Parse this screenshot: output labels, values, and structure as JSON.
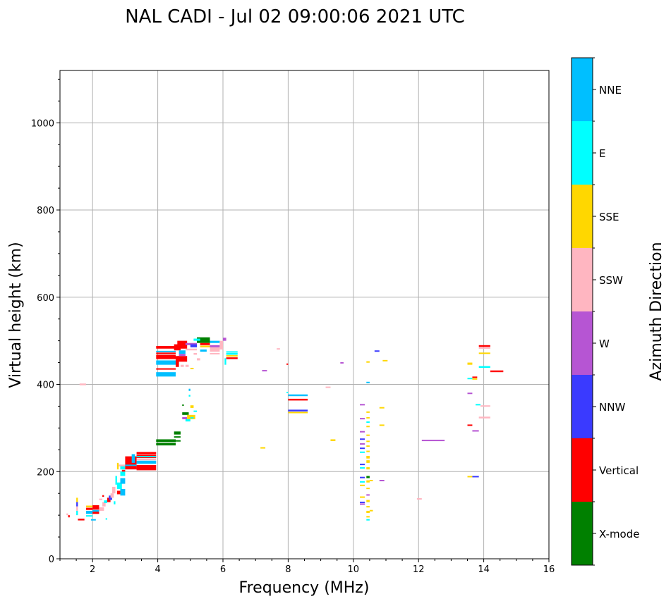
{
  "chart_data": {
    "type": "scatter",
    "title": "NAL CADI - Jul 02 09:00:06 2021 UTC",
    "xlabel": "Frequency (MHz)",
    "ylabel": "Virtual height (km)",
    "xlim": [
      1,
      16
    ],
    "ylim": [
      0,
      1120
    ],
    "xticks": [
      2,
      4,
      6,
      8,
      10,
      12,
      14,
      16
    ],
    "yticks": [
      0,
      200,
      400,
      600,
      800,
      1000
    ],
    "grid": true,
    "colorbar": {
      "label": "Azimuth Direction",
      "categories": [
        {
          "name": "X-mode",
          "color": "#008000"
        },
        {
          "name": "Vertical",
          "color": "#ff0000"
        },
        {
          "name": "NNW",
          "color": "#3a3aff"
        },
        {
          "name": "W",
          "color": "#b655d3"
        },
        {
          "name": "SSW",
          "color": "#ffb6c1"
        },
        {
          "name": "SSE",
          "color": "#ffd700"
        },
        {
          "name": "E",
          "color": "#00ffff"
        },
        {
          "name": "NNE",
          "color": "#00bfff"
        }
      ]
    },
    "segments_format": "[freq_start_MHz, freq_end_MHz, height_low_km, height_high_km, category_index]",
    "segments": [
      [
        1.2,
        1.25,
        100,
        104,
        4
      ],
      [
        1.25,
        1.3,
        95,
        100,
        1
      ],
      [
        1.5,
        1.55,
        130,
        140,
        5
      ],
      [
        1.5,
        1.55,
        120,
        130,
        2
      ],
      [
        1.5,
        1.55,
        110,
        120,
        4
      ],
      [
        1.5,
        1.55,
        100,
        110,
        6
      ],
      [
        1.55,
        1.75,
        88,
        92,
        1
      ],
      [
        1.8,
        2.0,
        118,
        122,
        5
      ],
      [
        1.8,
        2.0,
        112,
        117,
        1
      ],
      [
        1.8,
        2.0,
        103,
        110,
        7
      ],
      [
        1.8,
        2.0,
        97,
        100,
        6
      ],
      [
        2.0,
        2.2,
        113,
        123,
        1
      ],
      [
        2.0,
        2.2,
        103,
        112,
        1
      ],
      [
        2.0,
        2.2,
        108,
        112,
        7
      ],
      [
        2.2,
        2.35,
        110,
        118,
        4
      ],
      [
        2.3,
        2.4,
        120,
        130,
        4
      ],
      [
        2.35,
        2.45,
        128,
        134,
        6
      ],
      [
        2.45,
        2.55,
        130,
        140,
        1
      ],
      [
        2.5,
        2.6,
        135,
        145,
        2
      ],
      [
        2.55,
        2.65,
        140,
        150,
        4
      ],
      [
        2.6,
        2.7,
        150,
        165,
        4
      ],
      [
        2.65,
        2.7,
        125,
        132,
        6
      ],
      [
        2.2,
        2.3,
        135,
        138,
        4
      ],
      [
        2.3,
        2.35,
        142,
        146,
        1
      ],
      [
        1.95,
        2.1,
        88,
        91,
        7
      ],
      [
        2.4,
        2.45,
        90,
        93,
        6
      ],
      [
        2.7,
        2.75,
        170,
        190,
        6
      ],
      [
        2.75,
        2.85,
        148,
        156,
        1
      ],
      [
        2.75,
        2.9,
        160,
        175,
        6
      ],
      [
        2.85,
        3.0,
        145,
        160,
        7
      ],
      [
        2.85,
        3.0,
        172,
        185,
        7
      ],
      [
        2.85,
        3.0,
        190,
        200,
        6
      ],
      [
        2.85,
        3.0,
        205,
        215,
        6
      ],
      [
        2.75,
        2.8,
        205,
        220,
        5
      ],
      [
        2.8,
        3.0,
        212,
        216,
        4
      ],
      [
        2.9,
        3.0,
        200,
        204,
        1
      ],
      [
        3.0,
        3.35,
        205,
        235,
        1
      ],
      [
        3.0,
        3.35,
        213,
        216,
        7
      ],
      [
        3.2,
        3.3,
        220,
        240,
        7
      ],
      [
        3.35,
        3.95,
        203,
        215,
        1
      ],
      [
        3.35,
        3.95,
        218,
        225,
        7
      ],
      [
        3.35,
        3.95,
        226,
        230,
        4
      ],
      [
        3.35,
        3.95,
        231,
        239,
        1
      ],
      [
        3.35,
        3.95,
        240,
        245,
        1
      ],
      [
        3.35,
        3.95,
        234,
        236,
        6
      ],
      [
        3.95,
        4.55,
        260,
        266,
        0
      ],
      [
        3.95,
        4.55,
        268,
        274,
        0
      ],
      [
        4.5,
        4.7,
        285,
        292,
        0
      ],
      [
        4.5,
        4.7,
        278,
        281,
        0
      ],
      [
        4.5,
        4.7,
        270,
        272,
        0
      ],
      [
        4.75,
        4.9,
        320,
        325,
        3
      ],
      [
        4.75,
        4.95,
        330,
        336,
        0
      ],
      [
        4.85,
        5.0,
        315,
        320,
        6
      ],
      [
        4.9,
        5.15,
        320,
        330,
        5
      ],
      [
        5.0,
        5.1,
        322,
        325,
        6
      ],
      [
        5.1,
        5.2,
        338,
        340,
        6
      ],
      [
        4.95,
        5.0,
        385,
        390,
        7
      ],
      [
        4.95,
        5.0,
        372,
        376,
        6
      ],
      [
        4.75,
        4.8,
        352,
        354,
        0
      ],
      [
        5.0,
        5.1,
        346,
        352,
        5
      ],
      [
        3.95,
        4.55,
        482,
        488,
        1
      ],
      [
        3.95,
        4.55,
        474,
        477,
        7
      ],
      [
        3.95,
        4.55,
        470,
        473,
        1
      ],
      [
        3.95,
        4.55,
        458,
        468,
        1
      ],
      [
        3.95,
        4.55,
        445,
        455,
        7
      ],
      [
        3.95,
        4.55,
        435,
        437,
        1
      ],
      [
        3.95,
        4.55,
        418,
        428,
        7
      ],
      [
        4.5,
        4.7,
        478,
        492,
        1
      ],
      [
        4.55,
        4.65,
        440,
        465,
        1
      ],
      [
        4.6,
        4.9,
        452,
        465,
        1
      ],
      [
        4.6,
        4.9,
        482,
        500,
        1
      ],
      [
        4.65,
        4.85,
        470,
        478,
        7
      ],
      [
        4.65,
        4.85,
        465,
        470,
        3
      ],
      [
        4.85,
        5.2,
        490,
        495,
        3
      ],
      [
        4.85,
        5.2,
        478,
        482,
        4
      ],
      [
        5.2,
        5.6,
        495,
        508,
        0
      ],
      [
        5.1,
        5.3,
        500,
        505,
        6
      ],
      [
        5.0,
        5.2,
        485,
        492,
        2
      ],
      [
        5.3,
        5.6,
        490,
        495,
        1
      ],
      [
        5.3,
        5.6,
        485,
        489,
        5
      ],
      [
        5.6,
        5.9,
        495,
        500,
        7
      ],
      [
        5.6,
        5.9,
        485,
        490,
        3
      ],
      [
        5.6,
        5.9,
        475,
        485,
        4
      ],
      [
        5.9,
        6.0,
        480,
        500,
        4
      ],
      [
        5.3,
        5.5,
        475,
        480,
        7
      ],
      [
        5.6,
        5.9,
        470,
        472,
        4
      ],
      [
        5.1,
        5.2,
        468,
        472,
        4
      ],
      [
        6.1,
        6.45,
        468,
        472,
        6
      ],
      [
        6.1,
        6.45,
        464,
        467,
        5
      ],
      [
        6.1,
        6.45,
        458,
        462,
        1
      ],
      [
        6.1,
        6.45,
        473,
        476,
        6
      ],
      [
        4.7,
        4.8,
        440,
        445,
        4
      ],
      [
        4.85,
        4.95,
        440,
        445,
        4
      ],
      [
        5.0,
        5.1,
        435,
        438,
        5
      ],
      [
        5.2,
        5.3,
        455,
        460,
        4
      ],
      [
        6.05,
        6.1,
        445,
        460,
        6
      ],
      [
        6.0,
        6.1,
        500,
        507,
        3
      ],
      [
        1.6,
        1.8,
        398,
        402,
        4
      ],
      [
        7.2,
        7.35,
        430,
        433,
        3
      ],
      [
        7.65,
        7.75,
        480,
        483,
        4
      ],
      [
        7.95,
        8.0,
        445,
        448,
        1
      ],
      [
        8.0,
        8.6,
        373,
        377,
        7
      ],
      [
        8.0,
        8.6,
        363,
        367,
        1
      ],
      [
        8.0,
        8.6,
        338,
        342,
        2
      ],
      [
        8.0,
        8.6,
        334,
        337,
        5
      ],
      [
        7.95,
        8.0,
        380,
        383,
        6
      ],
      [
        7.15,
        7.3,
        253,
        256,
        5
      ],
      [
        9.15,
        9.3,
        393,
        395,
        4
      ],
      [
        9.3,
        9.45,
        270,
        274,
        5
      ],
      [
        9.6,
        9.7,
        448,
        451,
        3
      ],
      [
        10.4,
        10.5,
        450,
        453,
        5
      ],
      [
        10.4,
        10.5,
        403,
        406,
        7
      ],
      [
        10.65,
        10.8,
        475,
        478,
        2
      ],
      [
        10.9,
        11.05,
        453,
        456,
        5
      ],
      [
        10.8,
        10.95,
        345,
        348,
        5
      ],
      [
        10.8,
        10.95,
        305,
        308,
        5
      ],
      [
        10.8,
        10.95,
        178,
        181,
        3
      ],
      [
        10.2,
        10.35,
        352,
        355,
        3
      ],
      [
        10.2,
        10.35,
        320,
        323,
        3
      ],
      [
        10.2,
        10.35,
        290,
        293,
        3
      ],
      [
        10.2,
        10.35,
        273,
        276,
        2
      ],
      [
        10.2,
        10.35,
        262,
        265,
        3
      ],
      [
        10.2,
        10.35,
        252,
        255,
        2
      ],
      [
        10.2,
        10.35,
        243,
        246,
        6
      ],
      [
        10.2,
        10.35,
        215,
        218,
        2
      ],
      [
        10.2,
        10.35,
        207,
        210,
        6
      ],
      [
        10.2,
        10.35,
        185,
        188,
        2
      ],
      [
        10.2,
        10.35,
        175,
        178,
        6
      ],
      [
        10.2,
        10.35,
        167,
        170,
        5
      ],
      [
        10.2,
        10.35,
        140,
        143,
        5
      ],
      [
        10.2,
        10.35,
        128,
        131,
        2
      ],
      [
        10.2,
        10.35,
        125,
        127,
        3
      ],
      [
        10.4,
        10.5,
        335,
        338,
        5
      ],
      [
        10.4,
        10.5,
        322,
        325,
        5
      ],
      [
        10.4,
        10.5,
        312,
        315,
        6
      ],
      [
        10.4,
        10.5,
        302,
        305,
        5
      ],
      [
        10.4,
        10.5,
        282,
        285,
        5
      ],
      [
        10.4,
        10.5,
        268,
        271,
        5
      ],
      [
        10.4,
        10.5,
        257,
        260,
        5
      ],
      [
        10.4,
        10.5,
        245,
        248,
        5
      ],
      [
        10.4,
        10.5,
        230,
        236,
        5
      ],
      [
        10.4,
        10.5,
        220,
        226,
        5
      ],
      [
        10.4,
        10.5,
        205,
        210,
        5
      ],
      [
        10.4,
        10.5,
        185,
        190,
        0
      ],
      [
        10.4,
        10.5,
        175,
        180,
        5
      ],
      [
        10.4,
        10.5,
        160,
        163,
        5
      ],
      [
        10.4,
        10.5,
        145,
        148,
        3
      ],
      [
        10.4,
        10.5,
        130,
        135,
        5
      ],
      [
        10.4,
        10.5,
        118,
        121,
        5
      ],
      [
        10.4,
        10.5,
        105,
        110,
        5
      ],
      [
        10.4,
        10.5,
        95,
        98,
        5
      ],
      [
        10.4,
        10.5,
        88,
        91,
        6
      ],
      [
        10.5,
        10.6,
        110,
        112,
        5
      ],
      [
        10.5,
        10.6,
        178,
        181,
        5
      ],
      [
        12.1,
        12.8,
        270,
        273,
        3
      ],
      [
        11.95,
        12.1,
        137,
        139,
        4
      ],
      [
        13.5,
        13.65,
        445,
        450,
        5
      ],
      [
        13.5,
        13.65,
        412,
        415,
        6
      ],
      [
        13.65,
        13.8,
        415,
        418,
        1
      ],
      [
        13.65,
        13.8,
        412,
        414,
        5
      ],
      [
        13.5,
        13.65,
        378,
        381,
        3
      ],
      [
        13.75,
        13.9,
        352,
        355,
        6
      ],
      [
        13.9,
        14.2,
        350,
        352,
        4
      ],
      [
        13.85,
        14.2,
        322,
        326,
        4
      ],
      [
        13.5,
        13.65,
        305,
        308,
        1
      ],
      [
        13.65,
        13.85,
        292,
        295,
        3
      ],
      [
        13.5,
        13.65,
        187,
        190,
        5
      ],
      [
        13.65,
        13.85,
        187,
        190,
        2
      ],
      [
        13.85,
        14.2,
        486,
        490,
        1
      ],
      [
        13.85,
        14.2,
        482,
        485,
        4
      ],
      [
        13.85,
        14.2,
        470,
        473,
        5
      ],
      [
        13.85,
        14.2,
        438,
        442,
        6
      ],
      [
        14.2,
        14.6,
        428,
        432,
        1
      ]
    ]
  }
}
